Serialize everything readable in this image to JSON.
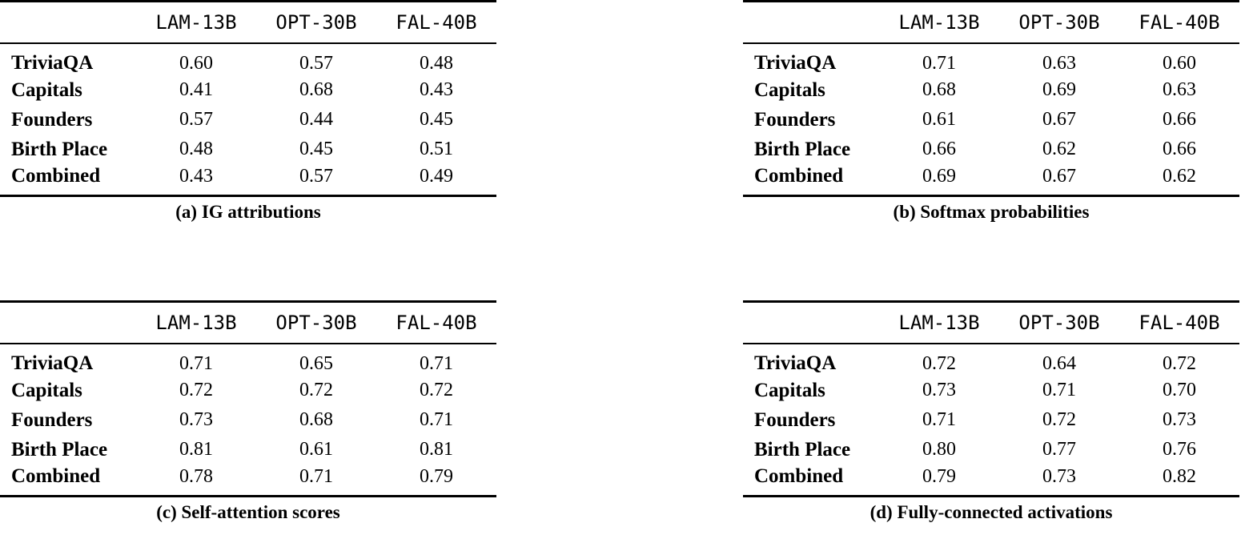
{
  "colors": {
    "text": "#000000",
    "background": "#ffffff",
    "rule": "#000000"
  },
  "figures": [
    {
      "caption": "(a) IG attributions",
      "columns": [
        "LAM-13B",
        "OPT-30B",
        "FAL-40B"
      ],
      "rows": [
        {
          "label": "TriviaQA",
          "values": [
            "0.60",
            "0.57",
            "0.48"
          ]
        },
        {
          "label": "Capitals",
          "values": [
            "0.41",
            "0.68",
            "0.43"
          ]
        },
        {
          "label": "Founders",
          "values": [
            "0.57",
            "0.44",
            "0.45"
          ]
        },
        {
          "label": "Birth Place",
          "values": [
            "0.48",
            "0.45",
            "0.51"
          ]
        },
        {
          "label": "Combined",
          "values": [
            "0.43",
            "0.57",
            "0.49"
          ]
        }
      ]
    },
    {
      "caption": "(b) Softmax probabilities",
      "columns": [
        "LAM-13B",
        "OPT-30B",
        "FAL-40B"
      ],
      "rows": [
        {
          "label": "TriviaQA",
          "values": [
            "0.71",
            "0.63",
            "0.60"
          ]
        },
        {
          "label": "Capitals",
          "values": [
            "0.68",
            "0.69",
            "0.63"
          ]
        },
        {
          "label": "Founders",
          "values": [
            "0.61",
            "0.67",
            "0.66"
          ]
        },
        {
          "label": "Birth Place",
          "values": [
            "0.66",
            "0.62",
            "0.66"
          ]
        },
        {
          "label": "Combined",
          "values": [
            "0.69",
            "0.67",
            "0.62"
          ]
        }
      ]
    },
    {
      "caption": "(c) Self-attention scores",
      "columns": [
        "LAM-13B",
        "OPT-30B",
        "FAL-40B"
      ],
      "rows": [
        {
          "label": "TriviaQA",
          "values": [
            "0.71",
            "0.65",
            "0.71"
          ]
        },
        {
          "label": "Capitals",
          "values": [
            "0.72",
            "0.72",
            "0.72"
          ]
        },
        {
          "label": "Founders",
          "values": [
            "0.73",
            "0.68",
            "0.71"
          ]
        },
        {
          "label": "Birth Place",
          "values": [
            "0.81",
            "0.61",
            "0.81"
          ]
        },
        {
          "label": "Combined",
          "values": [
            "0.78",
            "0.71",
            "0.79"
          ]
        }
      ]
    },
    {
      "caption": "(d) Fully-connected activations",
      "columns": [
        "LAM-13B",
        "OPT-30B",
        "FAL-40B"
      ],
      "rows": [
        {
          "label": "TriviaQA",
          "values": [
            "0.72",
            "0.64",
            "0.72"
          ]
        },
        {
          "label": "Capitals",
          "values": [
            "0.73",
            "0.71",
            "0.70"
          ]
        },
        {
          "label": "Founders",
          "values": [
            "0.71",
            "0.72",
            "0.73"
          ]
        },
        {
          "label": "Birth Place",
          "values": [
            "0.80",
            "0.77",
            "0.76"
          ]
        },
        {
          "label": "Combined",
          "values": [
            "0.79",
            "0.73",
            "0.82"
          ]
        }
      ]
    }
  ]
}
